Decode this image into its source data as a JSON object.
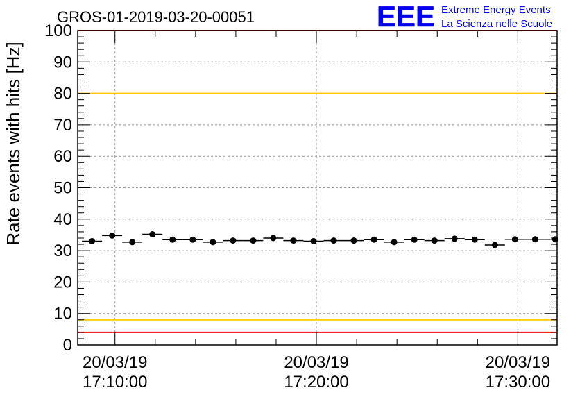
{
  "chart_data": {
    "type": "scatter",
    "title": "GROS-01-2019-03-20-00051",
    "xlabel": "",
    "ylabel": "Rate events with hits [Hz]",
    "ylim": [
      0,
      100
    ],
    "y_ticks": [
      "0",
      "10",
      "20",
      "30",
      "40",
      "50",
      "60",
      "70",
      "80",
      "90",
      "100"
    ],
    "x_ticks": [
      {
        "date": "20/03/19",
        "time": "17:10:00",
        "minute": 10
      },
      {
        "date": "20/03/19",
        "time": "17:20:00",
        "minute": 20
      },
      {
        "date": "20/03/19",
        "time": "17:30:00",
        "minute": 30
      }
    ],
    "grid": true,
    "reference_lines": [
      {
        "y": 100,
        "color": "#ff0000"
      },
      {
        "y": 80,
        "color": "#ffcc00"
      },
      {
        "y": 8,
        "color": "#ffcc00"
      },
      {
        "y": 4,
        "color": "#ff0000"
      }
    ],
    "series": [
      {
        "marker_color": "#000000",
        "x_minutes": [
          8.86,
          9.86,
          10.86,
          11.86,
          12.86,
          13.86,
          14.86,
          15.86,
          16.86,
          17.86,
          18.86,
          19.86,
          20.86,
          21.86,
          22.86,
          23.86,
          24.86,
          25.86,
          26.86,
          27.86,
          28.86,
          29.86,
          30.86,
          31.86
        ],
        "values": [
          33.0,
          34.8,
          32.7,
          35.2,
          33.5,
          33.5,
          32.7,
          33.2,
          33.2,
          34.0,
          33.2,
          33.0,
          33.2,
          33.2,
          33.5,
          32.7,
          33.5,
          33.2,
          33.8,
          33.5,
          31.8,
          33.6,
          33.6,
          33.6
        ]
      }
    ]
  },
  "logo": {
    "mark": "EEE",
    "line1": "Extreme Energy Events",
    "line2": "La Scienza nelle Scuole",
    "color": "#0000ee"
  }
}
